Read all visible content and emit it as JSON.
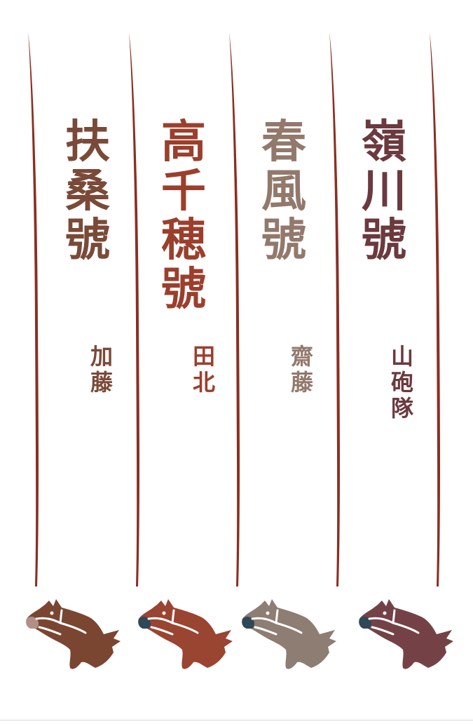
{
  "colors": {
    "divider": "#8a2f22",
    "bridle": "#ffffff",
    "muzzle_dark": "#2f4756",
    "muzzle_light": "#b48f86"
  },
  "columns": [
    {
      "title_chars": [
        "扶",
        "桑",
        "號"
      ],
      "rider_chars": [
        "加",
        "藤"
      ],
      "color": "#7a4a38",
      "horse_color": "#7a4632",
      "muzzle": "muzzle_light",
      "icon": "horse-head-icon"
    },
    {
      "title_chars": [
        "高",
        "千",
        "穂",
        "號"
      ],
      "rider_chars": [
        "田",
        "北"
      ],
      "color": "#9b3f2c",
      "horse_color": "#9a4432",
      "muzzle": "muzzle_dark",
      "icon": "horse-head-icon"
    },
    {
      "title_chars": [
        "春",
        "風",
        "號"
      ],
      "rider_chars": [
        "齋",
        "藤"
      ],
      "color": "#92796c",
      "horse_color": "#8d7d72",
      "muzzle": "muzzle_dark",
      "icon": "horse-head-icon"
    },
    {
      "title_chars": [
        "嶺",
        "川",
        "號"
      ],
      "rider_chars": [
        "山",
        "砲",
        "隊"
      ],
      "color": "#6b3a3e",
      "horse_color": "#744246",
      "muzzle": "muzzle_dark",
      "icon": "horse-head-icon"
    }
  ]
}
